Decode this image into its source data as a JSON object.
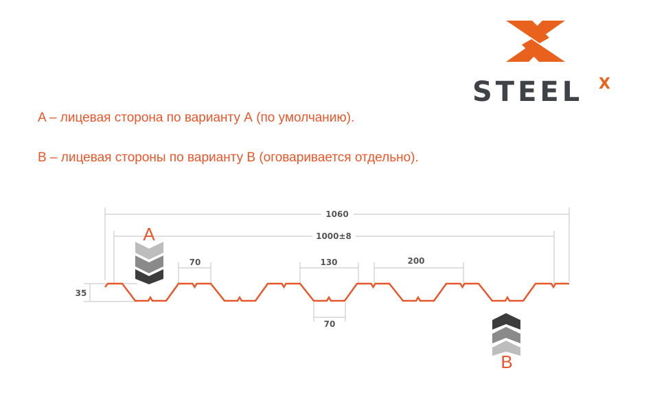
{
  "logo": {
    "text": "STEEL",
    "superscript": "X",
    "brand_color": "#e8621e",
    "text_color": "#3f4347"
  },
  "notes": [
    "A – лицевая сторона по варианту А (по умолчанию).",
    "B – лицевая стороны по варианту В (оговаривается отдельно)."
  ],
  "diagram": {
    "dimensions": {
      "total_width": "1060",
      "useful_width": "1000±8",
      "top_flat": "70",
      "bottom_gap": "130",
      "rib_gap": "200",
      "bottom_flat": "70",
      "height": "35"
    },
    "side_a_label": "A",
    "side_b_label": "B",
    "profile_color": "#e8562a",
    "dimension_line_color": "#cccccc"
  }
}
